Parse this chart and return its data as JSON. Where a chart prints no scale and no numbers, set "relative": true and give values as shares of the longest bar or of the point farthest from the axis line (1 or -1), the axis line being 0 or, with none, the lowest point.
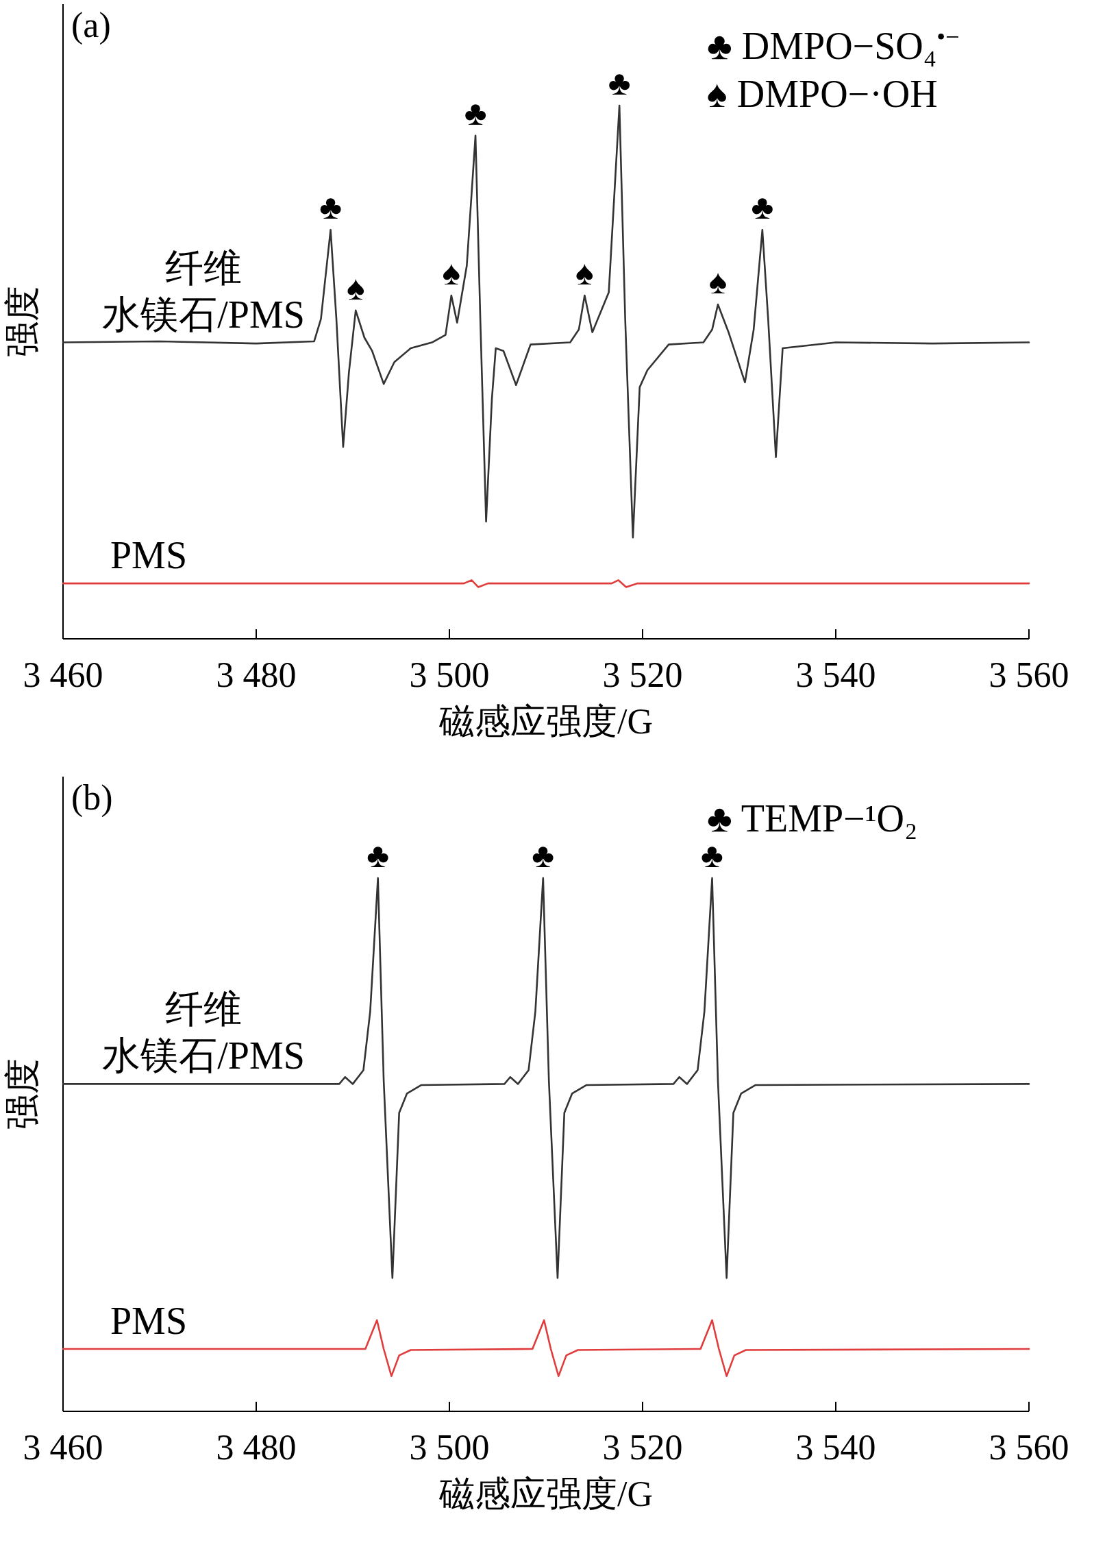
{
  "chart_data": [
    {
      "type": "line",
      "title": "(a)",
      "xlabel": "磁感应强度/G",
      "ylabel": "强度",
      "relative": true,
      "grid": false,
      "tick_labels": "x",
      "xlim": [
        3460,
        3560
      ],
      "xticks": [
        {
          "value": 3460,
          "label": "3 460"
        },
        {
          "value": 3480,
          "label": "3 480"
        },
        {
          "value": 3500,
          "label": "3 500"
        },
        {
          "value": 3520,
          "label": "3 520"
        },
        {
          "value": 3540,
          "label": "3 540"
        },
        {
          "value": 3560,
          "label": "3 560"
        }
      ],
      "series": [
        {
          "name": "纤维水镁石/PMS",
          "color": "#333333",
          "x": [
            3460,
            3470,
            3480,
            3486.0,
            3486.7,
            3487.7,
            3488.3,
            3489.0,
            3489.6,
            3490.3,
            3491.2,
            3492.0,
            3493.2,
            3494.3,
            3496.0,
            3498.2,
            3499.6,
            3500.2,
            3500.8,
            3501.8,
            3502.7,
            3503.2,
            3503.8,
            3504.4,
            3504.8,
            3505.6,
            3506.9,
            3508.4,
            3512.5,
            3513.4,
            3514.0,
            3514.8,
            3516.5,
            3517.6,
            3518.2,
            3519.0,
            3519.7,
            3520.5,
            3522.7,
            3526.3,
            3527.2,
            3527.8,
            3528.9,
            3530.6,
            3531.5,
            3532.4,
            3533.0,
            3533.8,
            3534.5,
            3540,
            3550,
            3560
          ],
          "values": [
            0.556,
            0.558,
            0.554,
            0.558,
            0.6,
            0.767,
            0.6,
            0.36,
            0.5,
            0.616,
            0.565,
            0.54,
            0.478,
            0.519,
            0.545,
            0.556,
            0.57,
            0.644,
            0.593,
            0.7,
            0.944,
            0.6,
            0.22,
            0.45,
            0.545,
            0.54,
            0.476,
            0.552,
            0.556,
            0.58,
            0.644,
            0.575,
            0.65,
            1.0,
            0.6,
            0.19,
            0.472,
            0.504,
            0.552,
            0.556,
            0.58,
            0.627,
            0.575,
            0.481,
            0.58,
            0.767,
            0.6,
            0.341,
            0.545,
            0.556,
            0.554,
            0.556
          ]
        },
        {
          "name": "PMS",
          "color": "#e03c3c",
          "x": [
            3460,
            3501.5,
            3502.3,
            3503.0,
            3504,
            3516.8,
            3517.5,
            3518.3,
            3519.5,
            3560
          ],
          "values": [
            0.104,
            0.104,
            0.11,
            0.097,
            0.104,
            0.104,
            0.11,
            0.097,
            0.104,
            0.104
          ]
        }
      ],
      "annotations": [
        "♣ DMPO−SO₄$^{•−}$",
        "♠ DMPO−·OH",
        {
          "text": "♣",
          "x": 3487.7,
          "y": 0.767
        },
        {
          "text": "♠",
          "x": 3490.3,
          "y": 0.616
        },
        {
          "text": "♠",
          "x": 3500.2,
          "y": 0.644
        },
        {
          "text": "♣",
          "x": 3502.7,
          "y": 0.944
        },
        {
          "text": "♠",
          "x": 3514.0,
          "y": 0.644
        },
        {
          "text": "♣",
          "x": 3517.6,
          "y": 1.0
        },
        {
          "text": "♠",
          "x": 3527.8,
          "y": 0.627
        },
        {
          "text": "♣",
          "x": 3532.4,
          "y": 0.767
        }
      ]
    },
    {
      "type": "line",
      "title": "(b)",
      "xlabel": "磁感应强度/G",
      "ylabel": "强度",
      "relative": true,
      "grid": false,
      "tick_labels": "x",
      "xlim": [
        3460,
        3560
      ],
      "xticks": [
        {
          "value": 3460,
          "label": "3 460"
        },
        {
          "value": 3480,
          "label": "3 480"
        },
        {
          "value": 3500,
          "label": "3 500"
        },
        {
          "value": 3520,
          "label": "3 520"
        },
        {
          "value": 3540,
          "label": "3 540"
        },
        {
          "value": 3560,
          "label": "3 560"
        }
      ],
      "series": [
        {
          "name": "纤维水镁石/PMS",
          "color": "#333333",
          "x": [
            3460,
            3488.6,
            3489.2,
            3490.0,
            3491.1,
            3491.8,
            3492.6,
            3493.2,
            3494.1,
            3494.8,
            3495.6,
            3497.1,
            3505.7,
            3506.3,
            3507.1,
            3508.2,
            3508.9,
            3509.7,
            3510.3,
            3511.2,
            3511.9,
            3512.7,
            3514.2,
            3523.2,
            3523.8,
            3524.6,
            3525.7,
            3526.4,
            3527.2,
            3527.8,
            3528.7,
            3529.4,
            3530.2,
            3531.7,
            3560
          ],
          "values": [
            0.614,
            0.614,
            0.627,
            0.614,
            0.64,
            0.75,
            1.0,
            0.62,
            0.25,
            0.56,
            0.596,
            0.612,
            0.614,
            0.627,
            0.614,
            0.64,
            0.75,
            1.0,
            0.62,
            0.25,
            0.56,
            0.596,
            0.612,
            0.614,
            0.627,
            0.614,
            0.64,
            0.75,
            1.0,
            0.62,
            0.25,
            0.56,
            0.596,
            0.612,
            0.614
          ]
        },
        {
          "name": "PMS",
          "color": "#e03c3c",
          "x": [
            3460,
            3491.3,
            3492.5,
            3493.2,
            3494.0,
            3494.8,
            3496.0,
            3508.6,
            3509.8,
            3510.5,
            3511.3,
            3512.1,
            3513.3,
            3526.0,
            3527.2,
            3527.9,
            3528.7,
            3529.5,
            3530.7,
            3560
          ],
          "values": [
            0.117,
            0.117,
            0.171,
            0.117,
            0.066,
            0.105,
            0.115,
            0.117,
            0.171,
            0.117,
            0.066,
            0.105,
            0.115,
            0.117,
            0.171,
            0.117,
            0.066,
            0.105,
            0.115,
            0.117
          ]
        }
      ],
      "annotations": [
        "♣ TEMP−¹O₂",
        {
          "text": "♣",
          "x": 3492.6,
          "y": 1.0
        },
        {
          "text": "♣",
          "x": 3509.7,
          "y": 1.0
        },
        {
          "text": "♣",
          "x": 3527.2,
          "y": 1.0
        }
      ]
    }
  ]
}
